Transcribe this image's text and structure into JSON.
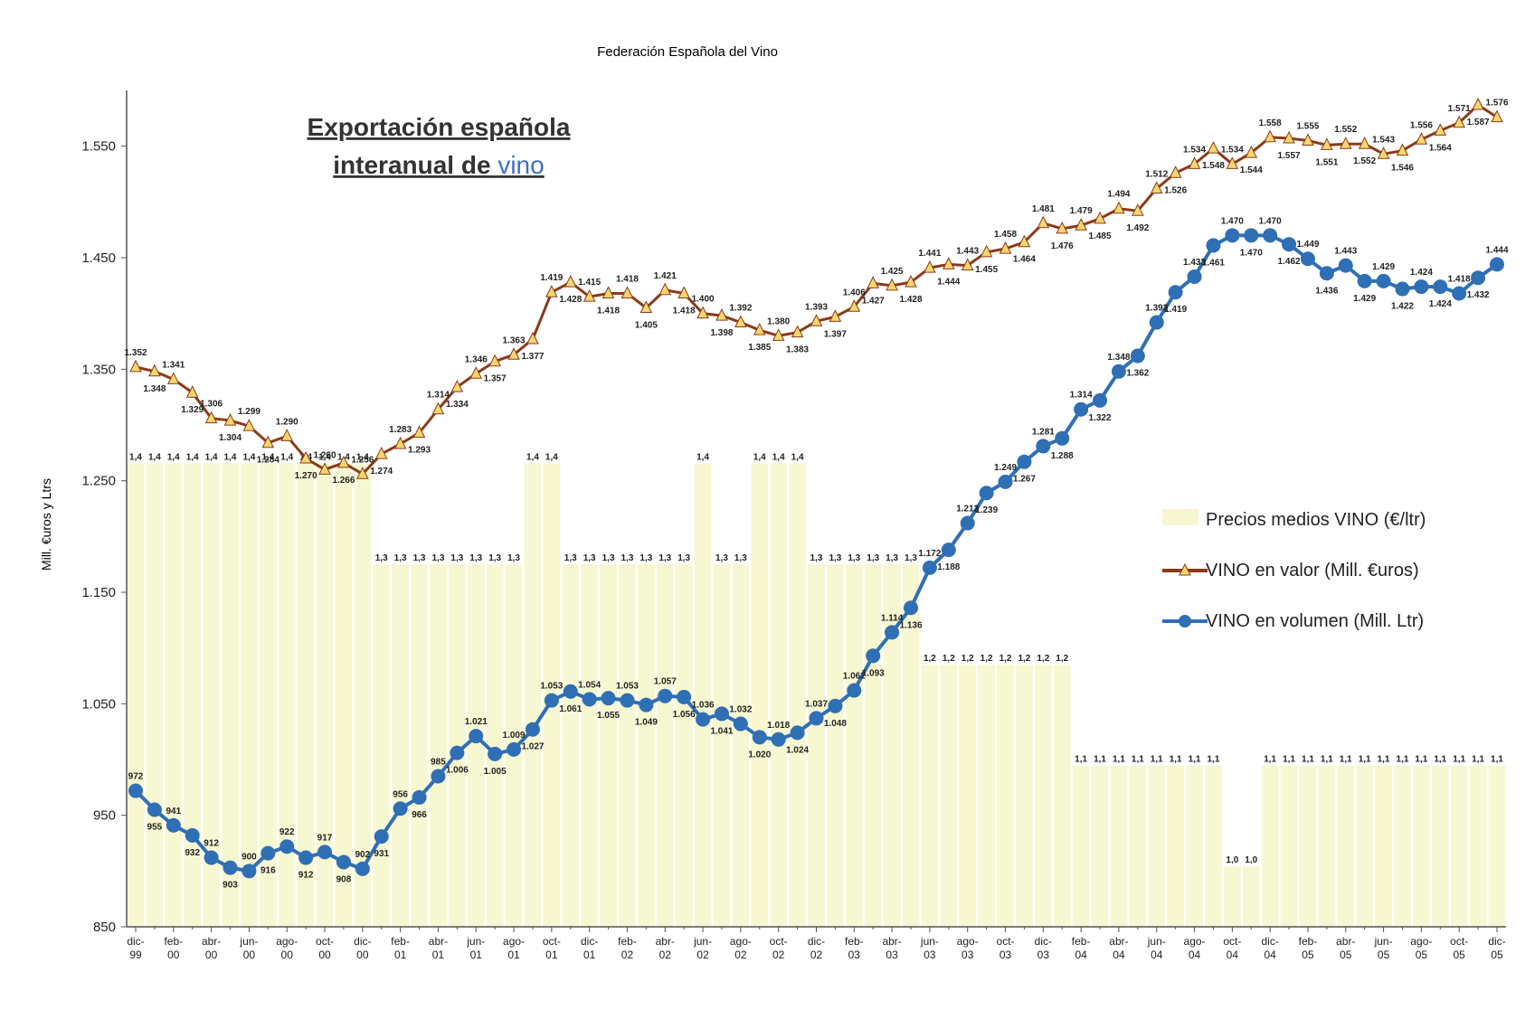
{
  "chart_data": {
    "type": "line",
    "title": "Federación Española del Vino",
    "annotation": {
      "line1": "Exportación española",
      "line2": "interanual de",
      "highlight": "vino"
    },
    "y_label": "Mill. €uros y Ltrs",
    "categories": [
      "dic-99",
      null,
      "feb-00",
      null,
      "abr-00",
      null,
      "jun-00",
      null,
      "ago-00",
      null,
      "oct-00",
      null,
      "dic-00",
      null,
      "feb-01",
      null,
      "abr-01",
      null,
      "jun-01",
      null,
      "ago-01",
      null,
      "oct-01",
      null,
      "dic-01",
      null,
      "feb-02",
      null,
      "abr-02",
      null,
      "jun-02",
      null,
      "ago-02",
      null,
      "oct-02",
      null,
      "dic-02",
      null,
      "feb-03",
      null,
      "abr-03",
      null,
      "jun-03",
      null,
      "ago-03",
      null,
      "oct-03",
      null,
      "dic-03",
      null,
      "feb-04",
      null,
      "abr-04",
      null,
      "jun-04",
      null,
      "ago-04",
      null,
      "oct-04",
      null,
      "dic-04",
      null,
      "feb-05",
      null,
      "abr-05",
      null,
      "jun-05",
      null,
      "ago-05",
      null,
      "oct-05",
      null,
      "dic-05"
    ],
    "ylim": [
      850,
      1600
    ],
    "yticks": [
      850,
      950,
      {
        "value": 1050,
        "label": "1.050"
      },
      {
        "value": 1150,
        "label": "1.150"
      },
      {
        "value": 1250,
        "label": "1.250"
      },
      {
        "value": 1350,
        "label": "1.350"
      },
      {
        "value": 1450,
        "label": "1.450"
      },
      {
        "value": 1550,
        "label": "1.550"
      }
    ],
    "y2lim": [
      0.94,
      1.77
    ],
    "legend": "right",
    "series": [
      {
        "name": "Precios medios VINO (€/ltr)",
        "color": "#f7f7d2",
        "type": "bar",
        "axis": "y2",
        "values": [
          1.4,
          1.4,
          1.4,
          1.4,
          1.4,
          1.4,
          1.4,
          1.4,
          1.4,
          1.4,
          1.4,
          1.4,
          1.4,
          1.3,
          1.3,
          1.3,
          1.3,
          1.3,
          1.3,
          1.3,
          1.3,
          1.4,
          1.4,
          1.3,
          1.3,
          1.3,
          1.3,
          1.3,
          1.3,
          1.3,
          1.4,
          1.3,
          1.3,
          1.4,
          1.4,
          1.4,
          1.3,
          1.3,
          1.3,
          1.3,
          1.3,
          1.3,
          1.2,
          1.2,
          1.2,
          1.2,
          1.2,
          1.2,
          1.2,
          1.2,
          1.1,
          1.1,
          1.1,
          1.1,
          1.1,
          1.1,
          1.1,
          1.1,
          1.0,
          1.0,
          1.1,
          1.1,
          1.1,
          1.1,
          1.1,
          1.1,
          1.1,
          1.1,
          1.1,
          1.1,
          1.1,
          1.1,
          1.1
        ],
        "value_labels": [
          "1,4",
          "1,4",
          "1,4",
          "1,4",
          "1,4",
          "1,4",
          "1,4",
          "1,4",
          "1,4",
          "1,4",
          "1,4",
          "1,4",
          "1,4",
          "1,3",
          "1,3",
          "1,3",
          "1,3",
          "1,3",
          "1,3",
          "1,3",
          "1,3",
          "1,4",
          "1,4",
          "1,3",
          "1,3",
          "1,3",
          "1,3",
          "1,3",
          "1,3",
          "1,3",
          "1,4",
          "1,3",
          "1,3",
          "1,4",
          "1,4",
          "1,4",
          "1,3",
          "1,3",
          "1,3",
          "1,3",
          "1,3",
          "1,3",
          "1,2",
          "1,2",
          "1,2",
          "1,2",
          "1,2",
          "1,2",
          "1,2",
          "1,2",
          "1,1",
          "1,1",
          "1,1",
          "1,1",
          "1,1",
          "1,1",
          "1,1",
          "1,1",
          "1,0",
          "1,0",
          "1,1",
          "1,1",
          "1,1",
          "1,1",
          "1,1",
          "1,1",
          "1,1",
          "1,1",
          "1,1",
          "1,1",
          "1,1",
          "1,1",
          "1,1"
        ]
      },
      {
        "name": "VINO en valor (Mill. €uros)",
        "color": "#8b3a1a",
        "marker_color": "#f5d76e",
        "type": "line",
        "marker": "triangle",
        "values": [
          1352,
          1348,
          1341,
          1329,
          1306,
          1304,
          1299,
          1284,
          1290,
          1270,
          1260,
          1266,
          1256,
          1274,
          1283,
          1293,
          1314,
          1334,
          1346,
          1357,
          1363,
          1377,
          1419,
          1428,
          1415,
          1418,
          1418,
          1405,
          1421,
          1418,
          1400,
          1398,
          1392,
          1385,
          1380,
          1383,
          1393,
          1397,
          1406,
          1427,
          1425,
          1428,
          1441,
          1444,
          1443,
          1455,
          1458,
          1464,
          1481,
          1476,
          1479,
          1485,
          1494,
          1492,
          1512,
          1526,
          1534,
          1548,
          1534,
          1544,
          1558,
          1557,
          1555,
          1551,
          1552,
          1552,
          1543,
          1546,
          1556,
          1564,
          1571,
          1587,
          1576
        ],
        "value_labels": [
          "1.352",
          "1.348",
          "1.341",
          "1.329",
          "1.306",
          "1.304",
          "1.299",
          "1.284",
          "1.290",
          "1.270",
          "1.260",
          "1.266",
          "1.256",
          "1.274",
          "1.283",
          "1.293",
          "1.314",
          "1.334",
          "1.346",
          "1.357",
          "1.363",
          "1.377",
          "1.419",
          "1.428",
          "1.415",
          "1.418",
          "1.418",
          "1.405",
          "1.421",
          "1.418",
          "1.400",
          "1.398",
          "1.392",
          "1.385",
          "1.380",
          "1.383",
          "1.393",
          "1.397",
          "1.406",
          "1.427",
          "1.425",
          "1.428",
          "1.441",
          "1.444",
          "1.443",
          "1.455",
          "1.458",
          "1.464",
          "1.481",
          "1.476",
          "1.479",
          "1.485",
          "1.494",
          "1.492",
          "1.512",
          "1.526",
          "1.534",
          "1.548",
          "1.534",
          "1.544",
          "1.558",
          "1.557",
          "1.555",
          "1.551",
          "1.552",
          "1.552",
          "1.543",
          "1.546",
          "1.556",
          "1.564",
          "1.571",
          "1.587",
          "1.576"
        ]
      },
      {
        "name": "VINO en volumen (Mill. Ltr)",
        "color": "#2f6fb5",
        "type": "line",
        "marker": "circle",
        "values": [
          972,
          955,
          941,
          932,
          912,
          903,
          900,
          916,
          922,
          912,
          917,
          908,
          902,
          931,
          956,
          966,
          985,
          1006,
          1021,
          1005,
          1009,
          1027,
          1053,
          1061,
          1054,
          1055,
          1053,
          1049,
          1057,
          1056,
          1036,
          1041,
          1032,
          1020,
          1018,
          1024,
          1037,
          1048,
          1062,
          1093,
          1114,
          1136,
          1172,
          1188,
          1212,
          1239,
          1249,
          1267,
          1281,
          1288,
          1314,
          1322,
          1348,
          1362,
          1392,
          1419,
          1433,
          1461,
          1470,
          1470,
          1470,
          1462,
          1449,
          1436,
          1443,
          1429,
          1429,
          1422,
          1424,
          1424,
          1418,
          1432,
          1444
        ],
        "value_labels": [
          "972",
          "955",
          "941",
          "932",
          "912",
          "903",
          "900",
          "916",
          "922",
          "912",
          "917",
          "908",
          "902",
          "931",
          "956",
          "966",
          "985",
          "1.006",
          "1.021",
          "1.005",
          "1.009",
          "1.027",
          "1.053",
          "1.061",
          "1.054",
          "1.055",
          "1.053",
          "1.049",
          "1.057",
          "1.056",
          "1.036",
          "1.041",
          "1.032",
          "1.020",
          "1.018",
          "1.024",
          "1.037",
          "1.048",
          "1.062",
          "1.093",
          "1.114",
          "1.136",
          "1.172",
          "1.188",
          "1.212",
          "1.239",
          "1.249",
          "1.267",
          "1.281",
          "1.288",
          "1.314",
          "1.322",
          "1.348",
          "1.362",
          "1.392",
          "1.419",
          "1.433",
          "1.461",
          "1.470",
          "1.470",
          "1.470",
          "1.462",
          "1.449",
          "1.436",
          "1.443",
          "1.429",
          "1.429",
          "1.422",
          "1.424",
          "1.424",
          "1.418",
          "1.432",
          "1.444"
        ]
      }
    ]
  }
}
